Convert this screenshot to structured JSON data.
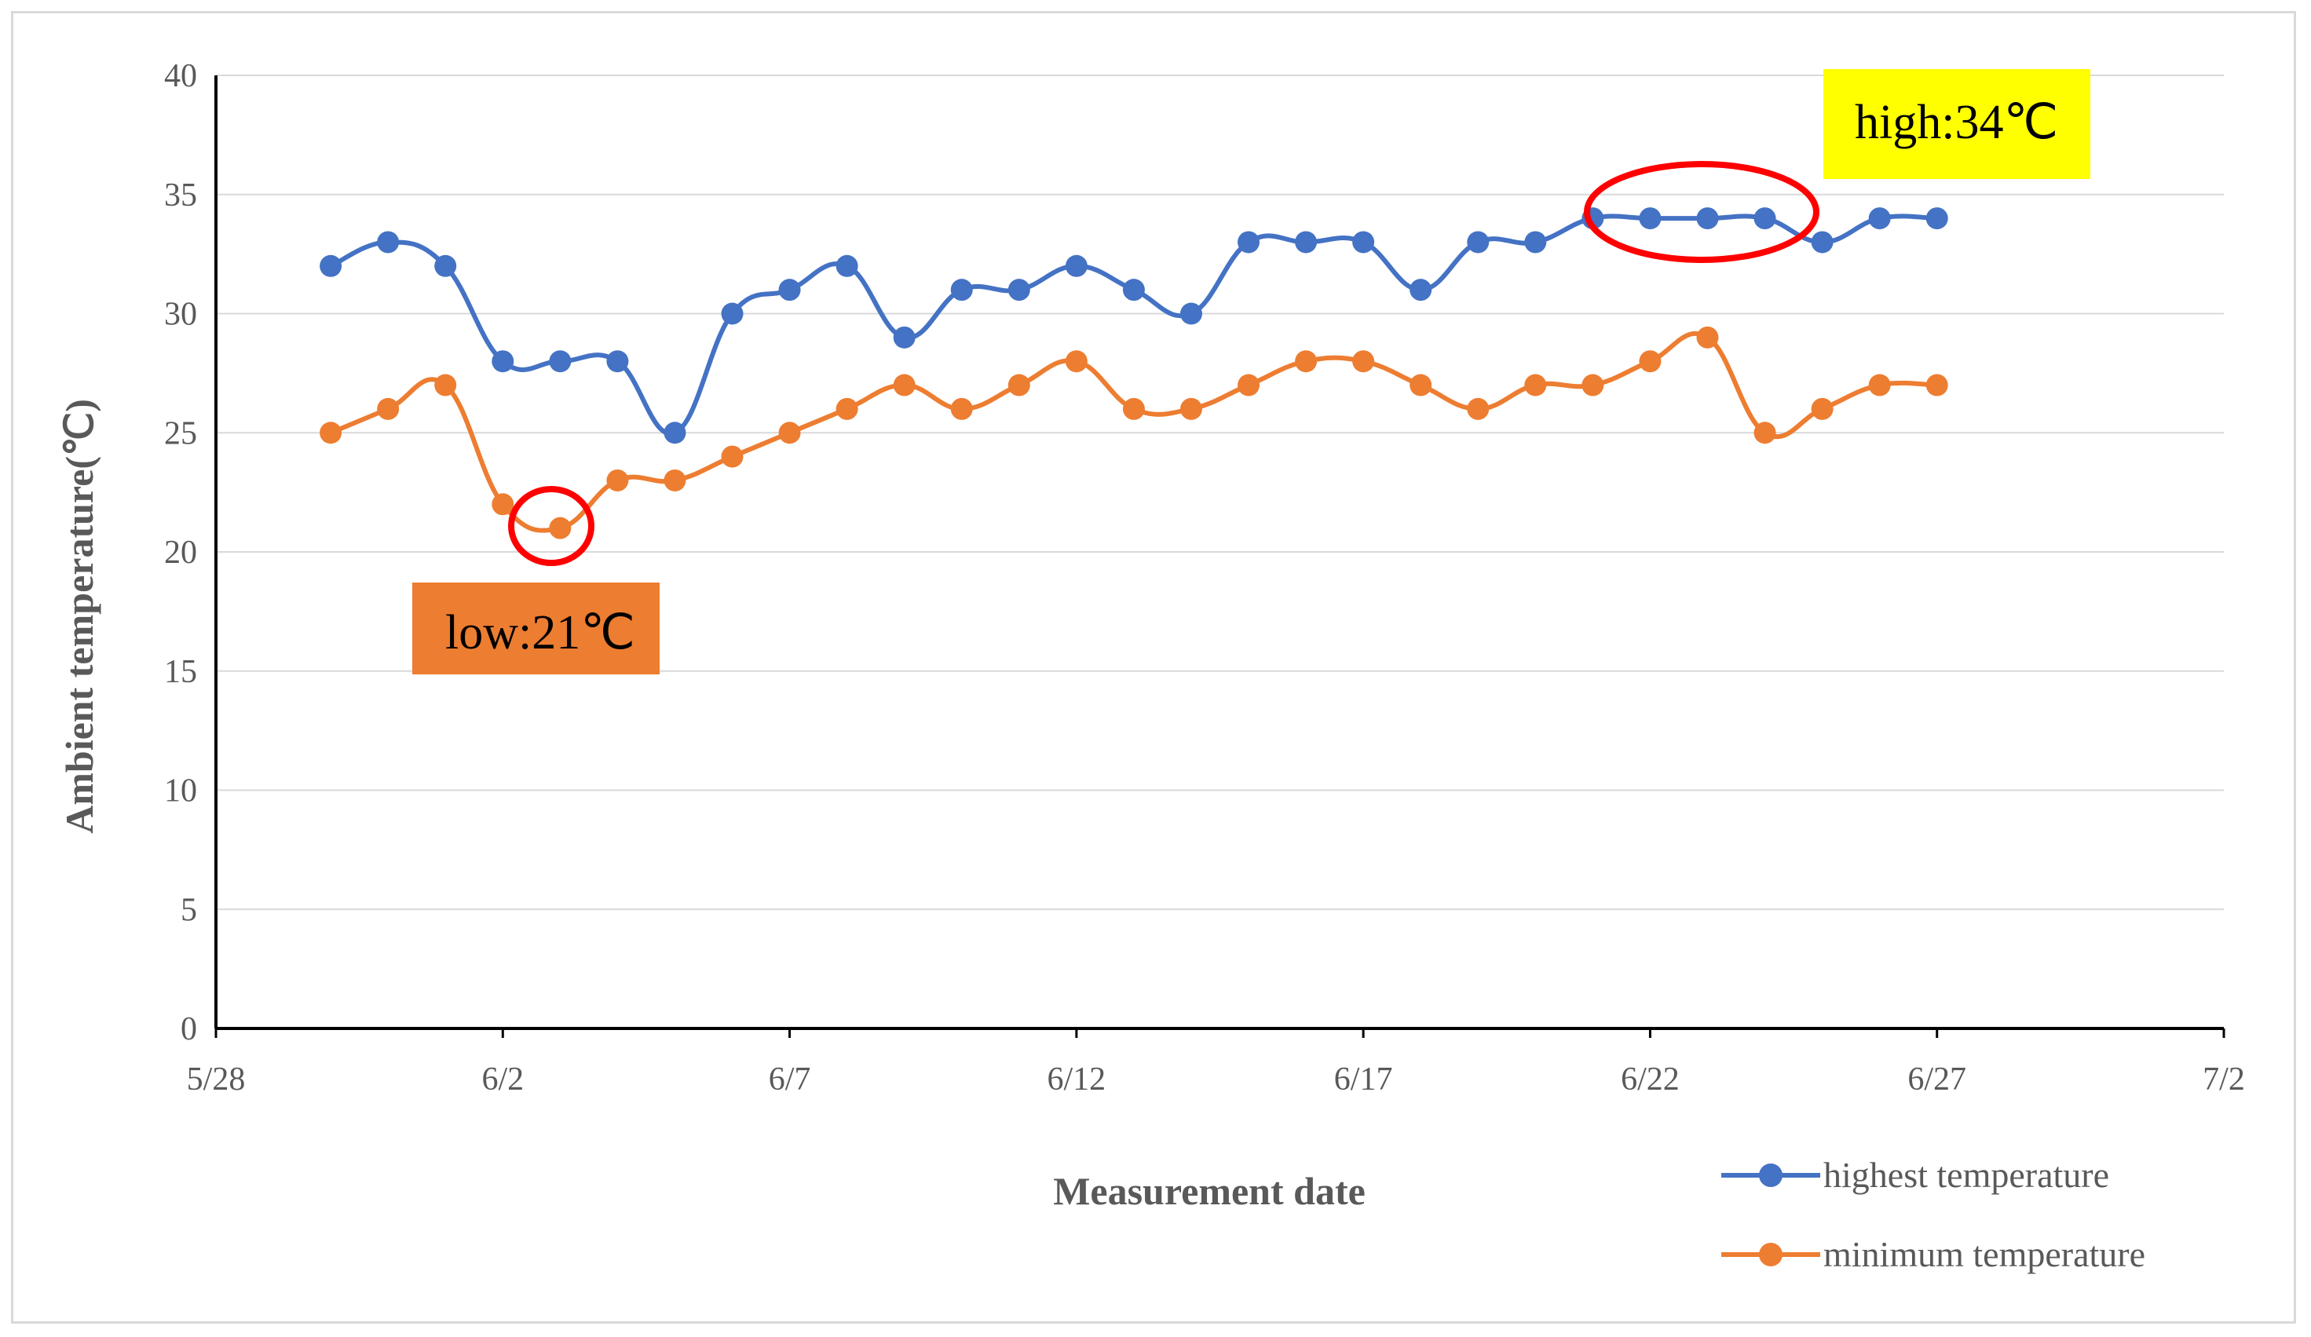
{
  "chart_data": {
    "type": "line",
    "xlabel": "Measurement date",
    "ylabel": "Ambient temperature(℃)",
    "ylim": [
      0,
      40
    ],
    "yticks": [
      0,
      5,
      10,
      15,
      20,
      25,
      30,
      35,
      40
    ],
    "xlim": [
      "5/28",
      "7/2"
    ],
    "xtick_labels": [
      "5/28",
      "6/2",
      "6/7",
      "6/12",
      "6/17",
      "6/22",
      "6/27",
      "7/2"
    ],
    "grid": "horizontal",
    "legend_position": "bottom-right",
    "x": [
      "5/30",
      "5/31",
      "6/1",
      "6/2",
      "6/3",
      "6/4",
      "6/5",
      "6/6",
      "6/7",
      "6/8",
      "6/9",
      "6/10",
      "6/11",
      "6/12",
      "6/13",
      "6/14",
      "6/15",
      "6/16",
      "6/17",
      "6/18",
      "6/19",
      "6/20",
      "6/21",
      "6/22",
      "6/23",
      "6/24",
      "6/25",
      "6/26",
      "6/27"
    ],
    "series": [
      {
        "name": "highest temperature",
        "color": "#4472c4",
        "values": [
          32,
          33,
          32,
          28,
          28,
          28,
          25,
          30,
          31,
          32,
          29,
          31,
          31,
          32,
          31,
          30,
          33,
          33,
          33,
          31,
          33,
          33,
          34,
          34,
          34,
          34,
          33,
          34,
          34
        ]
      },
      {
        "name": "minimum temperature",
        "color": "#ed7d31",
        "values": [
          25,
          26,
          27,
          22,
          21,
          23,
          23,
          24,
          25,
          26,
          27,
          26,
          27,
          28,
          26,
          26,
          27,
          28,
          28,
          27,
          26,
          27,
          27,
          28,
          29,
          25,
          26,
          27,
          27
        ]
      }
    ],
    "annotations": [
      {
        "text": "high:34℃",
        "background": "#ffff00"
      },
      {
        "text": "low:21℃",
        "background": "#ed7d31"
      }
    ],
    "highlight_color": "#ff0000"
  }
}
